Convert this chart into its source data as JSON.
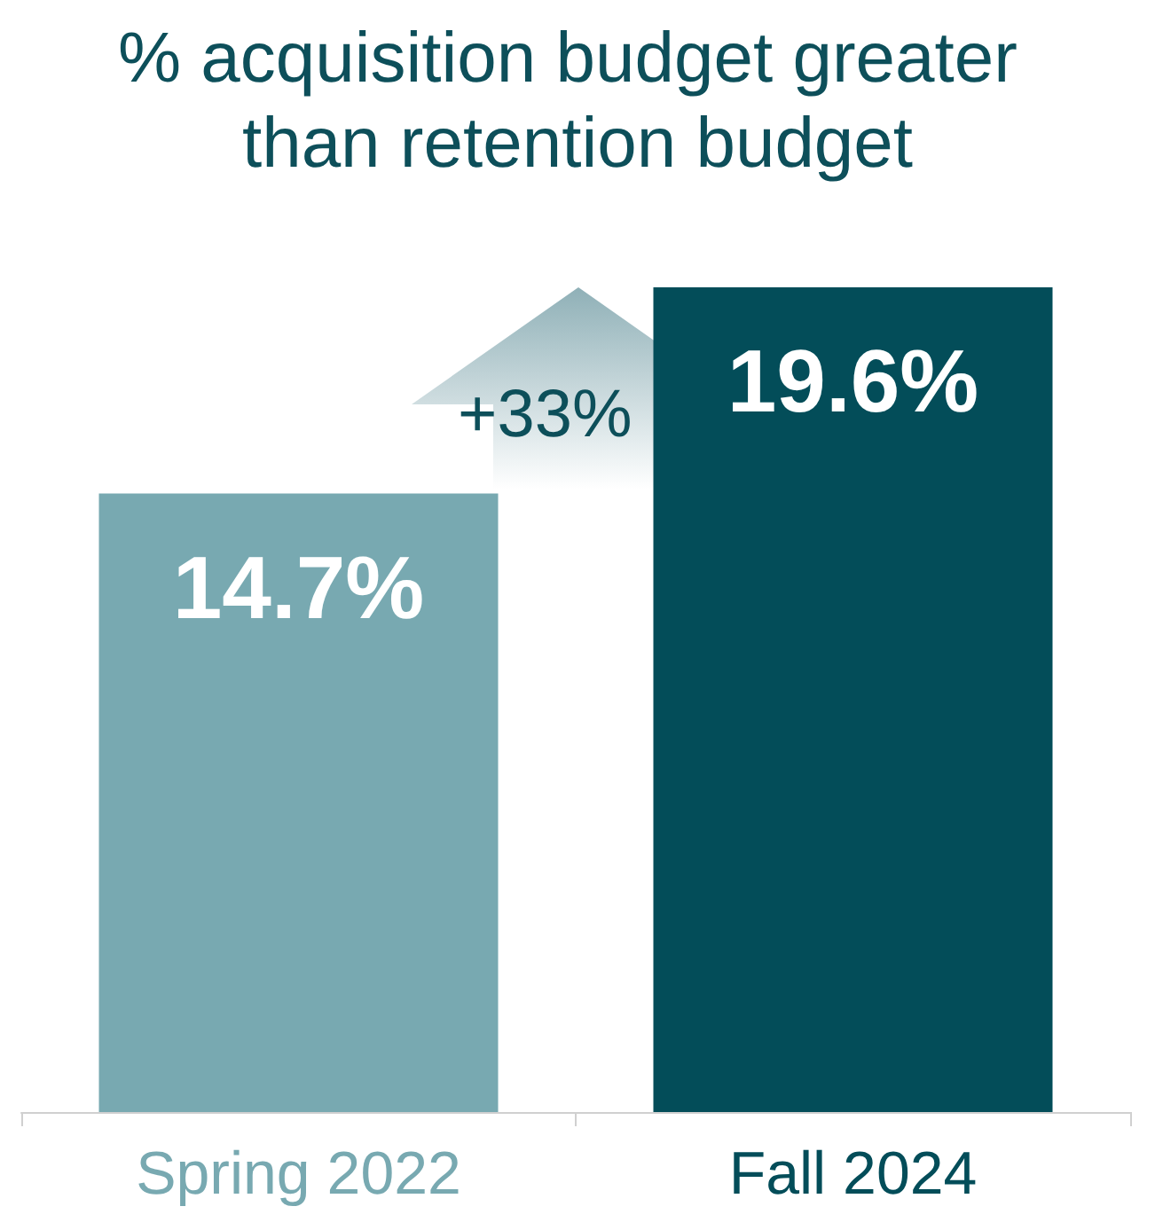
{
  "chart_data": {
    "type": "bar",
    "title": "% acquisition budget greater than retention budget",
    "categories": [
      "Spring 2022",
      "Fall 2024"
    ],
    "values": [
      14.7,
      19.6
    ],
    "colors": [
      "#78a9b1",
      "#034d59"
    ],
    "value_labels": [
      "14.7%",
      "19.6%"
    ],
    "annotations": [
      "+33%"
    ]
  }
}
